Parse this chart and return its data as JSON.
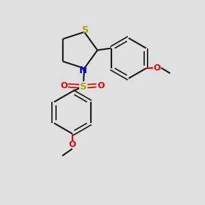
{
  "bg_color": "#e0e0e0",
  "bond_color": "#1a1a1a",
  "S_ring_color": "#aaaa00",
  "N_color": "#0000ee",
  "O_color": "#ee0000",
  "S_sulfonyl_color": "#aaaa00",
  "figsize": [
    3.0,
    3.0
  ],
  "dpi": 100,
  "xlim": [
    0,
    10
  ],
  "ylim": [
    0,
    10
  ]
}
